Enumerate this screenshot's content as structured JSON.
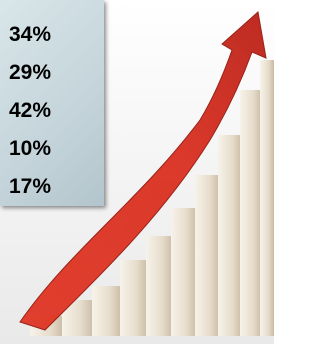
{
  "items": [
    "34%",
    "29%",
    "42%",
    "10%",
    "17%"
  ]
}
